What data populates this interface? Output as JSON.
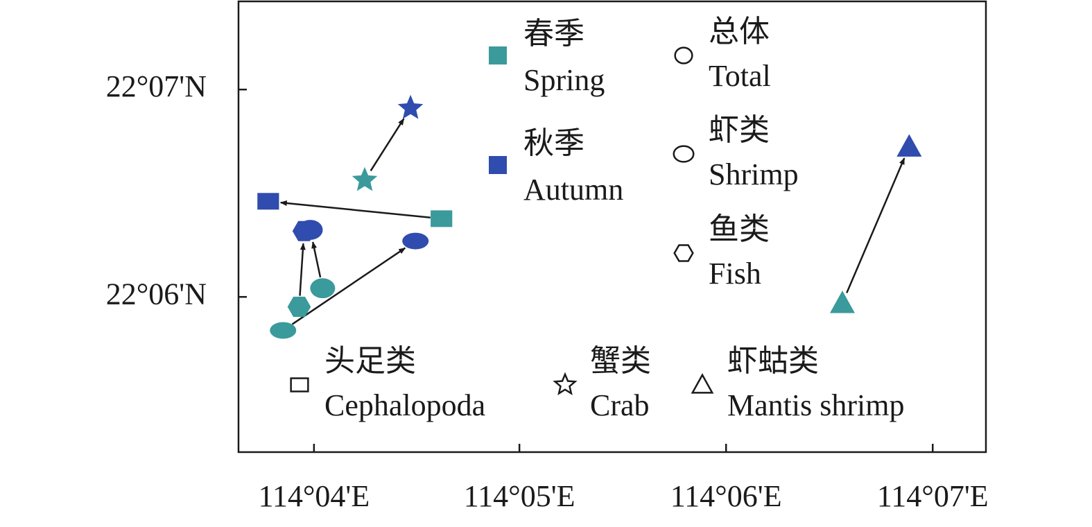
{
  "chart_data": {
    "type": "scatter",
    "xlim": [
      114.0606,
      114.121
    ],
    "ylim": [
      22.0875,
      22.1238
    ],
    "xticks": [
      {
        "value": 114.0667,
        "label": "114°04'E"
      },
      {
        "value": 114.0833,
        "label": "114°05'E"
      },
      {
        "value": 114.1,
        "label": "114°06'E"
      },
      {
        "value": 114.1167,
        "label": "114°07'E"
      }
    ],
    "yticks": [
      {
        "value": 22.1,
        "label": "22°06'N"
      },
      {
        "value": 22.1167,
        "label": "22°07'N"
      }
    ],
    "seasons": [
      {
        "label_zh": "春季",
        "name": "Spring",
        "color": "#3a9a9c"
      },
      {
        "label_zh": "秋季",
        "name": "Autumn",
        "color": "#2f4cae"
      }
    ],
    "series": [
      {
        "label_zh": "总体",
        "name": "Total",
        "marker": "circle",
        "x": [
          114.0642,
          114.0749
        ],
        "y": [
          22.0973,
          22.1045
        ]
      },
      {
        "label_zh": "虾类",
        "name": "Shrimp",
        "marker": "ellipse",
        "x": [
          114.0674,
          114.0664
        ],
        "y": [
          22.1007,
          22.1054
        ]
      },
      {
        "label_zh": "鱼类",
        "name": "Fish",
        "marker": "hexagon",
        "x": [
          114.0655,
          114.0659
        ],
        "y": [
          22.0992,
          22.1053
        ]
      },
      {
        "label_zh": "头足类",
        "name": "Cephalopoda",
        "marker": "square",
        "x": [
          114.077,
          114.063
        ],
        "y": [
          22.1063,
          22.1077
        ]
      },
      {
        "label_zh": "蟹类",
        "name": "Crab",
        "marker": "star",
        "x": [
          114.0708,
          114.0745
        ],
        "y": [
          22.1094,
          22.1152
        ]
      },
      {
        "label_zh": "虾蛄类",
        "name": "Mantis shrimp",
        "marker": "triangle",
        "x": [
          114.1094,
          114.1148
        ],
        "y": [
          22.0995,
          22.1121
        ]
      }
    ]
  }
}
